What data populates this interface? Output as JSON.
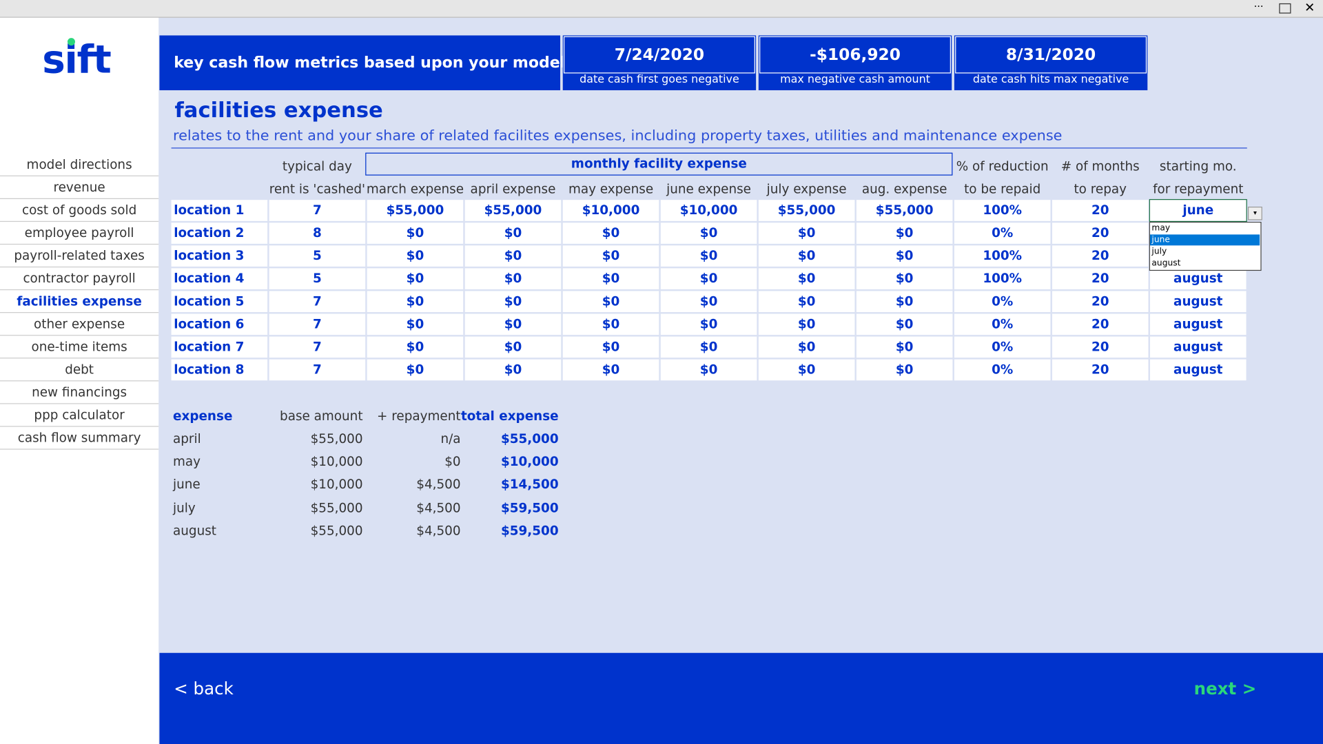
{
  "logo": "sift",
  "nav": {
    "items": [
      "model directions",
      "revenue",
      "cost of goods sold",
      "employee payroll",
      "payroll-related taxes",
      "contractor payroll",
      "facilities expense",
      "other expense",
      "one-time items",
      "debt",
      "new financings",
      "ppp calculator",
      "cash flow summary"
    ],
    "active": "facilities expense"
  },
  "metrics": {
    "title": "key cash flow metrics based upon your model",
    "items": [
      {
        "value": "7/24/2020",
        "label": "date cash first goes negative"
      },
      {
        "value": "-$106,920",
        "label": "max negative cash amount"
      },
      {
        "value": "8/31/2020",
        "label": "date cash hits max negative"
      }
    ]
  },
  "section": {
    "title": "facilities expense",
    "description": "relates to the rent and your share of related facilites expenses, including property taxes, utilities and maintenance expense"
  },
  "table": {
    "group_header": "monthly facility expense",
    "header_top": [
      "",
      "typical day",
      "",
      "",
      "",
      "",
      "",
      "",
      "% of reduction",
      "# of months",
      "starting mo."
    ],
    "header_bottom": [
      "",
      "rent is 'cashed'",
      "march expense",
      "april expense",
      "may expense",
      "june expense",
      "july expense",
      "aug. expense",
      "to be repaid",
      "to repay",
      "for repayment"
    ],
    "rows": [
      [
        "location 1",
        "7",
        "$55,000",
        "$55,000",
        "$10,000",
        "$10,000",
        "$55,000",
        "$55,000",
        "100%",
        "20",
        "june"
      ],
      [
        "location 2",
        "8",
        "$0",
        "$0",
        "$0",
        "$0",
        "$0",
        "$0",
        "0%",
        "20",
        ""
      ],
      [
        "location 3",
        "5",
        "$0",
        "$0",
        "$0",
        "$0",
        "$0",
        "$0",
        "100%",
        "20",
        ""
      ],
      [
        "location 4",
        "5",
        "$0",
        "$0",
        "$0",
        "$0",
        "$0",
        "$0",
        "100%",
        "20",
        "august"
      ],
      [
        "location 5",
        "7",
        "$0",
        "$0",
        "$0",
        "$0",
        "$0",
        "$0",
        "0%",
        "20",
        "august"
      ],
      [
        "location 6",
        "7",
        "$0",
        "$0",
        "$0",
        "$0",
        "$0",
        "$0",
        "0%",
        "20",
        "august"
      ],
      [
        "location 7",
        "7",
        "$0",
        "$0",
        "$0",
        "$0",
        "$0",
        "$0",
        "0%",
        "20",
        "august"
      ],
      [
        "location 8",
        "7",
        "$0",
        "$0",
        "$0",
        "$0",
        "$0",
        "$0",
        "0%",
        "20",
        "august"
      ]
    ]
  },
  "dropdown": {
    "options": [
      "may",
      "june",
      "july",
      "august"
    ],
    "selected": "june"
  },
  "summary": {
    "headers": [
      "expense",
      "base amount",
      "+ repayment",
      "total expense"
    ],
    "rows": [
      [
        "april",
        "$55,000",
        "n/a",
        "$55,000"
      ],
      [
        "may",
        "$10,000",
        "$0",
        "$10,000"
      ],
      [
        "june",
        "$10,000",
        "$4,500",
        "$14,500"
      ],
      [
        "july",
        "$55,000",
        "$4,500",
        "$59,500"
      ],
      [
        "august",
        "$55,000",
        "$4,500",
        "$59,500"
      ]
    ]
  },
  "footer": {
    "back": "< back",
    "next": "next >"
  }
}
